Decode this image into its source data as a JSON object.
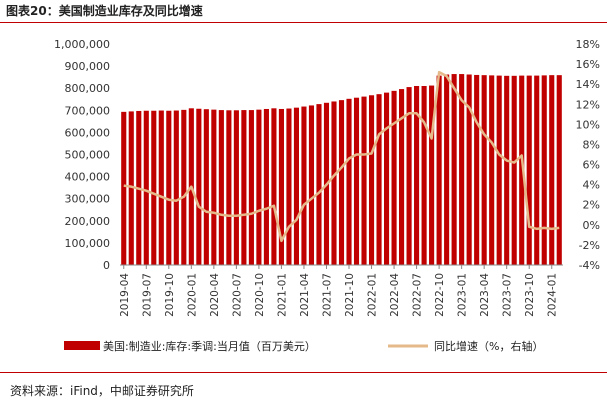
{
  "page": {
    "title": "图表20：美国制造业库存及同比增速",
    "source": "资料来源：iFind，中邮证券研究所"
  },
  "chart_data": {
    "type": "bar",
    "categories": [
      "2019-04",
      "2019-05",
      "2019-06",
      "2019-07",
      "2019-08",
      "2019-09",
      "2019-10",
      "2019-11",
      "2019-12",
      "2020-01",
      "2020-02",
      "2020-03",
      "2020-04",
      "2020-05",
      "2020-06",
      "2020-07",
      "2020-08",
      "2020-09",
      "2020-10",
      "2020-11",
      "2020-12",
      "2021-01",
      "2021-02",
      "2021-03",
      "2021-04",
      "2021-05",
      "2021-06",
      "2021-07",
      "2021-08",
      "2021-09",
      "2021-10",
      "2021-11",
      "2021-12",
      "2022-01",
      "2022-02",
      "2022-03",
      "2022-04",
      "2022-05",
      "2022-06",
      "2022-07",
      "2022-08",
      "2022-09",
      "2022-10",
      "2022-11",
      "2022-12",
      "2023-01",
      "2023-02",
      "2023-03",
      "2023-04",
      "2023-05",
      "2023-06",
      "2023-07",
      "2023-08",
      "2023-09",
      "2023-10",
      "2023-11",
      "2023-12",
      "2024-01",
      "2024-02"
    ],
    "x_tick_labels": [
      "2019-04",
      "2019-07",
      "2019-10",
      "2020-01",
      "2020-04",
      "2020-07",
      "2020-10",
      "2021-01",
      "2021-04",
      "2021-07",
      "2021-10",
      "2022-01",
      "2022-04",
      "2022-07",
      "2022-10",
      "2023-01",
      "2023-04",
      "2023-07",
      "2023-10",
      "2024-01"
    ],
    "series": [
      {
        "name": "美国:制造业:库存:季调:当月值（百万美元）",
        "type": "bar",
        "axis": "left",
        "color": "#c00000",
        "values": [
          693000,
          695000,
          697000,
          698000,
          698000,
          699000,
          698000,
          699000,
          702000,
          709000,
          707000,
          705000,
          703000,
          701000,
          700000,
          700000,
          701000,
          701000,
          703000,
          706000,
          709000,
          706000,
          708000,
          712000,
          717000,
          722000,
          728000,
          734000,
          740000,
          746000,
          752000,
          757000,
          762000,
          768000,
          773000,
          780000,
          788000,
          796000,
          805000,
          810000,
          810000,
          812000,
          857000,
          862000,
          864000,
          864000,
          862000,
          860000,
          859000,
          858000,
          857000,
          856000,
          856000,
          857000,
          857000,
          857000,
          858000,
          859000,
          859000
        ]
      },
      {
        "name": "同比增速（%，右轴）",
        "type": "line",
        "axis": "right",
        "color": "#e6b98a",
        "values": [
          3.9,
          3.8,
          3.6,
          3.4,
          3.1,
          2.8,
          2.5,
          2.4,
          2.8,
          3.8,
          1.8,
          1.3,
          1.2,
          1.0,
          0.9,
          0.9,
          1.0,
          1.1,
          1.4,
          1.6,
          1.9,
          -1.6,
          -0.2,
          0.5,
          2.0,
          2.6,
          3.2,
          4.0,
          4.9,
          5.7,
          6.6,
          7.0,
          7.0,
          7.1,
          9.0,
          9.6,
          10.1,
          10.6,
          11.1,
          11.1,
          10.2,
          8.6,
          15.2,
          14.8,
          13.6,
          12.4,
          11.7,
          10.2,
          9.0,
          8.2,
          7.0,
          6.4,
          6.2,
          6.9,
          -0.2,
          -0.4,
          -0.3,
          -0.4,
          -0.3
        ]
      }
    ],
    "y_left": {
      "min": 0,
      "max": 1000000,
      "step": 100000,
      "tick_labels": [
        "0",
        "100,000",
        "200,000",
        "300,000",
        "400,000",
        "500,000",
        "600,000",
        "700,000",
        "800,000",
        "900,000",
        "1,000,000"
      ]
    },
    "y_right": {
      "min": -4,
      "max": 18,
      "step": 2,
      "tick_labels": [
        "-4%",
        "-2%",
        "0%",
        "2%",
        "4%",
        "6%",
        "8%",
        "10%",
        "12%",
        "14%",
        "16%",
        "18%"
      ]
    },
    "grid": false,
    "legend_position": "bottom"
  }
}
